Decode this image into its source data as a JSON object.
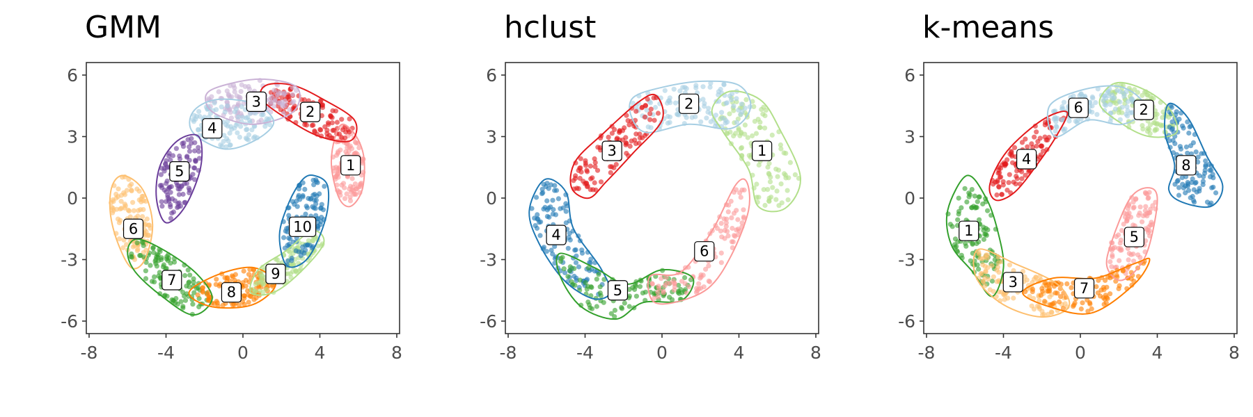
{
  "chart_data": [
    {
      "type": "scatter",
      "title": "GMM",
      "xlim": [
        -8,
        8
      ],
      "ylim": [
        -6,
        6
      ],
      "xticks": [
        -8,
        -4,
        0,
        4,
        8
      ],
      "yticks": [
        -6,
        -3,
        0,
        3,
        6
      ],
      "grid": false,
      "clusters": [
        {
          "label": "1",
          "color": "#fb9a99",
          "label_pos": [
            5.6,
            1.6
          ],
          "path": [
            [
              5.2,
              3.6
            ],
            [
              5.9,
              3.0
            ],
            [
              6.3,
              1.9
            ],
            [
              6.2,
              0.4
            ],
            [
              5.6,
              -0.4
            ],
            [
              5.0,
              0.0
            ],
            [
              4.6,
              1.6
            ],
            [
              4.8,
              3.0
            ]
          ]
        },
        {
          "label": "2",
          "color": "#e31a1c",
          "label_pos": [
            3.5,
            4.2
          ],
          "path": [
            [
              1.2,
              5.5
            ],
            [
              2.6,
              5.5
            ],
            [
              4.2,
              4.8
            ],
            [
              5.8,
              3.8
            ],
            [
              5.6,
              2.8
            ],
            [
              4.0,
              3.0
            ],
            [
              2.4,
              3.8
            ],
            [
              1.0,
              4.8
            ]
          ]
        },
        {
          "label": "3",
          "color": "#cab2d6",
          "label_pos": [
            0.7,
            4.7
          ],
          "path": [
            [
              -1.6,
              5.3
            ],
            [
              0.8,
              5.8
            ],
            [
              2.8,
              5.4
            ],
            [
              2.6,
              4.2
            ],
            [
              0.6,
              3.6
            ],
            [
              -1.2,
              4.0
            ],
            [
              -1.9,
              4.6
            ]
          ]
        },
        {
          "label": "4",
          "color": "#a6cee3",
          "label_pos": [
            -1.6,
            3.4
          ],
          "path": [
            [
              -2.6,
              4.2
            ],
            [
              -1.4,
              4.8
            ],
            [
              0.6,
              4.6
            ],
            [
              1.6,
              3.7
            ],
            [
              0.6,
              2.8
            ],
            [
              -1.0,
              2.4
            ],
            [
              -2.6,
              3.2
            ]
          ]
        },
        {
          "label": "5",
          "color": "#6a3d9a",
          "label_pos": [
            -3.3,
            1.3
          ],
          "path": [
            [
              -2.3,
              3.0
            ],
            [
              -2.2,
              1.5
            ],
            [
              -3.0,
              -0.4
            ],
            [
              -4.0,
              -1.2
            ],
            [
              -4.5,
              0.0
            ],
            [
              -4.3,
              1.6
            ],
            [
              -3.4,
              2.8
            ]
          ]
        },
        {
          "label": "6",
          "color": "#fdbf6f",
          "label_pos": [
            -5.7,
            -1.5
          ],
          "path": [
            [
              -6.2,
              1.1
            ],
            [
              -5.2,
              0.4
            ],
            [
              -4.7,
              -1.3
            ],
            [
              -5.1,
              -3.0
            ],
            [
              -5.8,
              -3.4
            ],
            [
              -6.5,
              -2.2
            ],
            [
              -6.9,
              -0.7
            ],
            [
              -6.8,
              0.6
            ]
          ]
        },
        {
          "label": "7",
          "color": "#33a02c",
          "label_pos": [
            -3.7,
            -4.0
          ],
          "path": [
            [
              -5.5,
              -2.0
            ],
            [
              -4.0,
              -2.6
            ],
            [
              -2.4,
              -3.7
            ],
            [
              -1.6,
              -4.9
            ],
            [
              -2.6,
              -5.7
            ],
            [
              -4.2,
              -4.8
            ],
            [
              -5.6,
              -3.6
            ],
            [
              -6.0,
              -2.6
            ]
          ]
        },
        {
          "label": "8",
          "color": "#ff7f00",
          "label_pos": [
            -0.6,
            -4.6
          ],
          "path": [
            [
              -2.8,
              -4.6
            ],
            [
              -1.2,
              -3.7
            ],
            [
              0.6,
              -3.4
            ],
            [
              1.7,
              -4.2
            ],
            [
              0.5,
              -5.2
            ],
            [
              -1.6,
              -5.3
            ]
          ]
        },
        {
          "label": "9",
          "color": "#b2df8a",
          "label_pos": [
            1.7,
            -3.7
          ],
          "path": [
            [
              0.8,
              -3.5
            ],
            [
              2.2,
              -2.6
            ],
            [
              3.6,
              -1.6
            ],
            [
              4.2,
              -2.2
            ],
            [
              3.0,
              -3.6
            ],
            [
              1.6,
              -4.6
            ],
            [
              0.4,
              -4.6
            ]
          ]
        },
        {
          "label": "10",
          "color": "#1f78b4",
          "label_pos": [
            3.1,
            -1.4
          ],
          "path": [
            [
              3.7,
              1.1
            ],
            [
              4.4,
              0.6
            ],
            [
              4.3,
              -1.0
            ],
            [
              3.4,
              -2.9
            ],
            [
              2.3,
              -3.3
            ],
            [
              1.9,
              -1.8
            ],
            [
              2.4,
              -0.2
            ],
            [
              3.1,
              0.9
            ]
          ]
        }
      ]
    },
    {
      "type": "scatter",
      "title": "hclust",
      "xlim": [
        -8,
        8
      ],
      "ylim": [
        -6,
        6
      ],
      "xticks": [
        -8,
        -4,
        0,
        4,
        8
      ],
      "yticks": [
        -6,
        -3,
        0,
        3,
        6
      ],
      "grid": false,
      "clusters": [
        {
          "label": "1",
          "color": "#b2df8a",
          "label_pos": [
            5.2,
            2.3
          ],
          "path": [
            [
              3.5,
              5.2
            ],
            [
              5.1,
              4.8
            ],
            [
              6.1,
              3.4
            ],
            [
              7.2,
              1.0
            ],
            [
              6.4,
              -0.5
            ],
            [
              5.0,
              -0.4
            ],
            [
              4.5,
              1.4
            ],
            [
              3.2,
              3.2
            ],
            [
              2.6,
              4.3
            ]
          ]
        },
        {
          "label": "2",
          "color": "#a6cee3",
          "label_pos": [
            1.4,
            4.6
          ],
          "path": [
            [
              -1.5,
              4.9
            ],
            [
              0.0,
              5.4
            ],
            [
              2.1,
              5.7
            ],
            [
              4.0,
              5.5
            ],
            [
              4.6,
              4.4
            ],
            [
              3.6,
              3.4
            ],
            [
              1.4,
              3.6
            ],
            [
              -0.8,
              3.2
            ],
            [
              -1.6,
              4.0
            ]
          ]
        },
        {
          "label": "3",
          "color": "#e31a1c",
          "label_pos": [
            -2.6,
            2.3
          ],
          "path": [
            [
              -0.3,
              5.0
            ],
            [
              0.0,
              3.8
            ],
            [
              -1.5,
              2.2
            ],
            [
              -2.9,
              0.8
            ],
            [
              -3.8,
              0.0
            ],
            [
              -4.7,
              0.5
            ],
            [
              -4.5,
              1.8
            ],
            [
              -3.0,
              3.2
            ],
            [
              -1.2,
              4.7
            ]
          ]
        },
        {
          "label": "4",
          "color": "#1f78b4",
          "label_pos": [
            -5.5,
            -1.8
          ],
          "path": [
            [
              -6.1,
              0.9
            ],
            [
              -5.0,
              0.3
            ],
            [
              -4.6,
              -1.5
            ],
            [
              -3.2,
              -3.4
            ],
            [
              -2.7,
              -4.6
            ],
            [
              -3.6,
              -4.9
            ],
            [
              -5.1,
              -4.0
            ],
            [
              -6.4,
              -2.2
            ],
            [
              -6.9,
              -0.6
            ]
          ]
        },
        {
          "label": "5",
          "color": "#33a02c",
          "label_pos": [
            -2.3,
            -4.5
          ],
          "path": [
            [
              -5.3,
              -2.7
            ],
            [
              -3.5,
              -3.4
            ],
            [
              -1.8,
              -4.2
            ],
            [
              0.0,
              -3.5
            ],
            [
              1.6,
              -3.9
            ],
            [
              1.0,
              -5.0
            ],
            [
              -1.0,
              -5.1
            ],
            [
              -2.4,
              -5.9
            ],
            [
              -4.2,
              -5.3
            ],
            [
              -5.3,
              -3.8
            ]
          ]
        },
        {
          "label": "6",
          "color": "#fb9a99",
          "label_pos": [
            2.2,
            -2.6
          ],
          "path": [
            [
              -0.6,
              -3.8
            ],
            [
              1.0,
              -3.6
            ],
            [
              2.6,
              -1.6
            ],
            [
              3.8,
              0.6
            ],
            [
              4.4,
              0.8
            ],
            [
              4.5,
              -0.6
            ],
            [
              3.6,
              -2.8
            ],
            [
              2.4,
              -4.4
            ],
            [
              0.6,
              -5.1
            ],
            [
              -0.5,
              -5.0
            ]
          ]
        }
      ]
    },
    {
      "type": "scatter",
      "title": "k-means",
      "xlim": [
        -8,
        8
      ],
      "ylim": [
        -6,
        6
      ],
      "xticks": [
        -8,
        -4,
        0,
        4,
        8
      ],
      "yticks": [
        -6,
        -3,
        0,
        3,
        6
      ],
      "grid": false,
      "clusters": [
        {
          "label": "1",
          "color": "#33a02c",
          "label_pos": [
            -5.8,
            -1.6
          ],
          "path": [
            [
              -5.9,
              1.1
            ],
            [
              -4.9,
              0.0
            ],
            [
              -4.3,
              -1.6
            ],
            [
              -4.0,
              -3.4
            ],
            [
              -4.6,
              -4.8
            ],
            [
              -5.6,
              -3.6
            ],
            [
              -6.7,
              -2.3
            ],
            [
              -6.9,
              -0.6
            ]
          ]
        },
        {
          "label": "2",
          "color": "#b2df8a",
          "label_pos": [
            3.3,
            4.3
          ],
          "path": [
            [
              1.8,
              5.6
            ],
            [
              3.3,
              5.3
            ],
            [
              4.6,
              4.4
            ],
            [
              5.0,
              3.2
            ],
            [
              3.6,
              3.0
            ],
            [
              2.2,
              3.6
            ],
            [
              1.0,
              4.6
            ]
          ]
        },
        {
          "label": "3",
          "color": "#fdbf6f",
          "label_pos": [
            -3.5,
            -4.1
          ],
          "path": [
            [
              -5.3,
              -2.5
            ],
            [
              -3.4,
              -3.2
            ],
            [
              -1.2,
              -4.2
            ],
            [
              -0.6,
              -5.3
            ],
            [
              -2.0,
              -5.8
            ],
            [
              -4.0,
              -5.2
            ],
            [
              -5.4,
              -3.9
            ]
          ]
        },
        {
          "label": "4",
          "color": "#e31a1c",
          "label_pos": [
            -2.8,
            1.9
          ],
          "path": [
            [
              -0.7,
              4.2
            ],
            [
              -1.2,
              3.1
            ],
            [
              -2.2,
              1.7
            ],
            [
              -3.4,
              0.3
            ],
            [
              -4.4,
              -0.1
            ],
            [
              -4.7,
              0.7
            ],
            [
              -3.8,
              2.3
            ],
            [
              -2.0,
              3.8
            ]
          ]
        },
        {
          "label": "5",
          "color": "#fb9a99",
          "label_pos": [
            2.8,
            -1.9
          ],
          "path": [
            [
              1.6,
              -2.2
            ],
            [
              2.6,
              0.0
            ],
            [
              3.6,
              0.5
            ],
            [
              4.0,
              -0.2
            ],
            [
              3.4,
              -2.8
            ],
            [
              2.2,
              -4.0
            ],
            [
              1.4,
              -3.4
            ]
          ]
        },
        {
          "label": "6",
          "color": "#a6cee3",
          "label_pos": [
            -0.1,
            4.4
          ],
          "path": [
            [
              -1.6,
              4.5
            ],
            [
              0.2,
              5.3
            ],
            [
              2.2,
              5.4
            ],
            [
              3.4,
              4.4
            ],
            [
              2.2,
              3.6
            ],
            [
              0.4,
              3.8
            ],
            [
              -1.3,
              3.0
            ]
          ]
        },
        {
          "label": "7",
          "color": "#ff7f00",
          "label_pos": [
            0.2,
            -4.4
          ],
          "path": [
            [
              -3.0,
              -4.6
            ],
            [
              -1.4,
              -3.9
            ],
            [
              0.8,
              -3.9
            ],
            [
              2.8,
              -3.2
            ],
            [
              3.6,
              -3.0
            ],
            [
              2.8,
              -4.2
            ],
            [
              0.6,
              -5.6
            ],
            [
              -1.6,
              -5.3
            ]
          ]
        },
        {
          "label": "8",
          "color": "#1f78b4",
          "label_pos": [
            5.5,
            1.6
          ],
          "path": [
            [
              4.6,
              4.6
            ],
            [
              5.6,
              3.9
            ],
            [
              6.6,
              2.0
            ],
            [
              7.4,
              0.6
            ],
            [
              6.8,
              -0.4
            ],
            [
              5.3,
              -0.2
            ],
            [
              4.6,
              0.4
            ],
            [
              4.9,
              1.6
            ],
            [
              4.4,
              3.2
            ]
          ]
        }
      ]
    }
  ]
}
